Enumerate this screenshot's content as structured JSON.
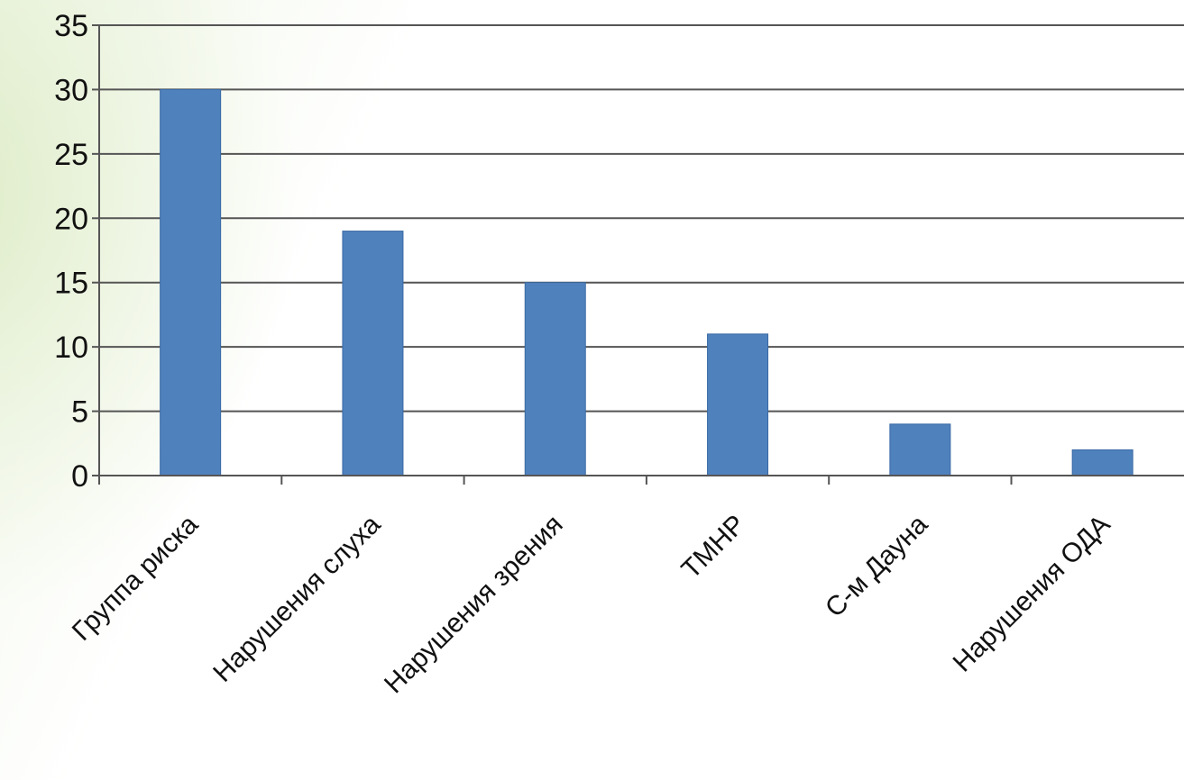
{
  "chart_data": {
    "type": "bar",
    "categories": [
      "Группа риска",
      "Нарушения слуха",
      "Нарушения зрения",
      "ТМНР",
      "С-м Дауна",
      "Нарушения ОДА"
    ],
    "values": [
      30,
      19,
      15,
      11,
      4,
      2
    ],
    "title": "",
    "xlabel": "",
    "ylabel": "",
    "ylim": [
      0,
      35
    ],
    "yticks": [
      0,
      5,
      10,
      15,
      20,
      25,
      30,
      35
    ],
    "grid": true,
    "legend": "none",
    "bar_color": "#4f81bd",
    "grid_color": "#555555",
    "axis_color": "#555555"
  }
}
